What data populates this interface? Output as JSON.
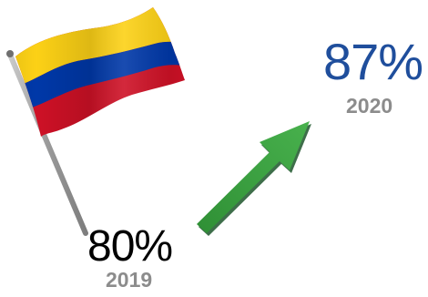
{
  "start": {
    "value": "80%",
    "year": "2019"
  },
  "end": {
    "value": "87%",
    "year": "2020"
  },
  "flag": {
    "stripe_colors": [
      "#fcd116",
      "#0038a8",
      "#ce1126"
    ]
  },
  "colors": {
    "end_value": "#1f4e9c",
    "year_labels": "#8c8c8c",
    "arrow": "#3aa53f"
  }
}
